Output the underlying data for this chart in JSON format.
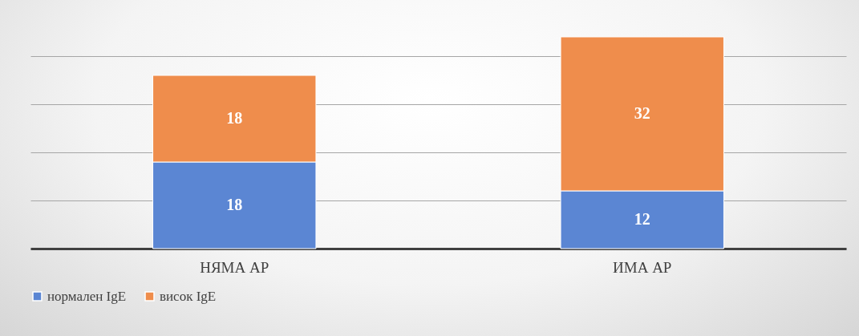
{
  "chart_data": {
    "type": "bar",
    "stacked": true,
    "data_labels": true,
    "categories": [
      "НЯМА АР",
      "ИМА АР"
    ],
    "series": [
      {
        "name": "нормален IgE",
        "color": "#5b86d3",
        "values": [
          18,
          12
        ]
      },
      {
        "name": "висок IgE",
        "color": "#ef8d4c",
        "values": [
          18,
          32
        ]
      }
    ],
    "grid": "y",
    "legend": "bottom"
  }
}
